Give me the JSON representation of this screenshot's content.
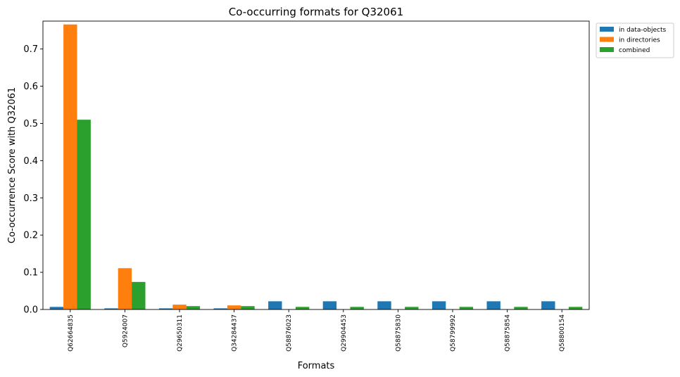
{
  "chart_data": {
    "type": "bar",
    "title": "Co-occurring formats for Q32061",
    "xlabel": "Formats",
    "ylabel": "Co-occurrence Score with Q32061",
    "ylim": [
      0,
      0.775
    ],
    "yticks": [
      "0.0",
      "0.1",
      "0.2",
      "0.3",
      "0.4",
      "0.5",
      "0.6",
      "0.7"
    ],
    "categories": [
      "Q62664835",
      "Q5924007",
      "Q29650311",
      "Q34284437",
      "Q58876023",
      "Q29904453",
      "Q58875830",
      "Q58799992",
      "Q58875854",
      "Q58800154"
    ],
    "series": [
      {
        "name": "in data-objects",
        "color": "#1f77b4",
        "values": [
          0.007,
          0.003,
          0.003,
          0.003,
          0.022,
          0.022,
          0.022,
          0.022,
          0.022,
          0.022
        ]
      },
      {
        "name": "in directories",
        "color": "#ff7f0e",
        "values": [
          0.766,
          0.111,
          0.013,
          0.011,
          0.0,
          0.0,
          0.0,
          0.0,
          0.0,
          0.0
        ]
      },
      {
        "name": "combined",
        "color": "#2ca02c",
        "values": [
          0.51,
          0.074,
          0.009,
          0.009,
          0.007,
          0.007,
          0.007,
          0.007,
          0.007,
          0.007
        ]
      }
    ],
    "legend_position": "outside-top-right",
    "grid": false
  }
}
